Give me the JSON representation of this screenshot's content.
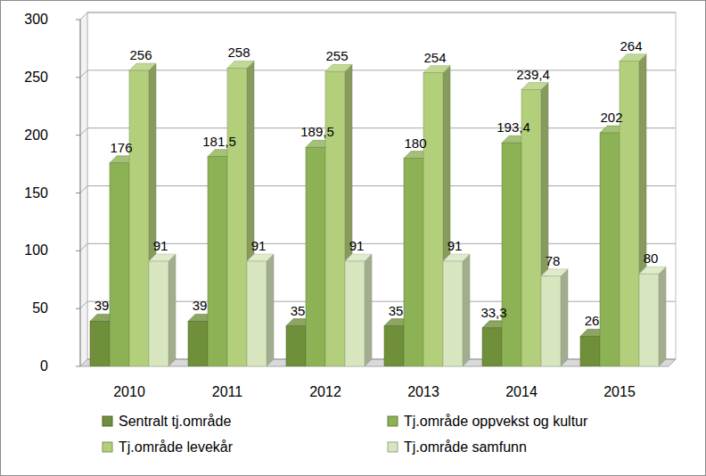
{
  "chart_data": {
    "type": "bar",
    "categories": [
      "2010",
      "2011",
      "2012",
      "2013",
      "2014",
      "2015"
    ],
    "series": [
      {
        "name": "Sentralt tj.område",
        "color": "#6f8f3a",
        "values": [
          39,
          39,
          35,
          35,
          33.3,
          26
        ],
        "value_labels": [
          "39",
          "39",
          "35",
          "35",
          "33,3",
          "26"
        ]
      },
      {
        "name": "Tj.område oppvekst og kultur",
        "color": "#8db255",
        "values": [
          176,
          181.5,
          189.5,
          180,
          193.4,
          202
        ],
        "value_labels": [
          "176",
          "181,5",
          "189,5",
          "180",
          "193,4",
          "202"
        ]
      },
      {
        "name": "Tj.område levekår",
        "color": "#b3cf7c",
        "values": [
          256,
          258,
          255,
          254,
          239.4,
          264
        ],
        "value_labels": [
          "256",
          "258",
          "255",
          "254",
          "239,4",
          "264"
        ]
      },
      {
        "name": "Tj.område samfunn",
        "color": "#d8e6bf",
        "values": [
          91,
          91,
          91,
          91,
          78,
          80
        ]
      }
    ],
    "ylim": [
      0,
      300
    ],
    "yticks": [
      0,
      50,
      100,
      150,
      200,
      250,
      300
    ],
    "grid": true,
    "data_labels": true,
    "legend": "bottom"
  }
}
